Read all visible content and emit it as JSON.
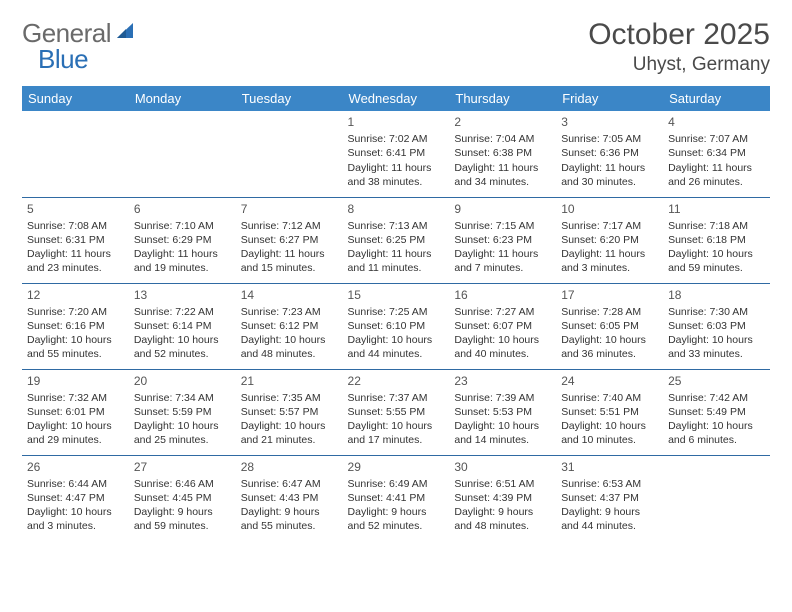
{
  "brand": {
    "part1": "General",
    "part2": "Blue"
  },
  "title": "October 2025",
  "location": "Uhyst, Germany",
  "colors": {
    "header_bg": "#3b86c7",
    "header_text": "#ffffff",
    "row_border": "#2f6aa3",
    "logo_gray": "#6a6a6a",
    "logo_blue": "#2a6fb5",
    "text": "#333333"
  },
  "weekdays": [
    "Sunday",
    "Monday",
    "Tuesday",
    "Wednesday",
    "Thursday",
    "Friday",
    "Saturday"
  ],
  "weeks": [
    [
      null,
      null,
      null,
      {
        "d": "1",
        "sr": "Sunrise: 7:02 AM",
        "ss": "Sunset: 6:41 PM",
        "dl": "Daylight: 11 hours and 38 minutes."
      },
      {
        "d": "2",
        "sr": "Sunrise: 7:04 AM",
        "ss": "Sunset: 6:38 PM",
        "dl": "Daylight: 11 hours and 34 minutes."
      },
      {
        "d": "3",
        "sr": "Sunrise: 7:05 AM",
        "ss": "Sunset: 6:36 PM",
        "dl": "Daylight: 11 hours and 30 minutes."
      },
      {
        "d": "4",
        "sr": "Sunrise: 7:07 AM",
        "ss": "Sunset: 6:34 PM",
        "dl": "Daylight: 11 hours and 26 minutes."
      }
    ],
    [
      {
        "d": "5",
        "sr": "Sunrise: 7:08 AM",
        "ss": "Sunset: 6:31 PM",
        "dl": "Daylight: 11 hours and 23 minutes."
      },
      {
        "d": "6",
        "sr": "Sunrise: 7:10 AM",
        "ss": "Sunset: 6:29 PM",
        "dl": "Daylight: 11 hours and 19 minutes."
      },
      {
        "d": "7",
        "sr": "Sunrise: 7:12 AM",
        "ss": "Sunset: 6:27 PM",
        "dl": "Daylight: 11 hours and 15 minutes."
      },
      {
        "d": "8",
        "sr": "Sunrise: 7:13 AM",
        "ss": "Sunset: 6:25 PM",
        "dl": "Daylight: 11 hours and 11 minutes."
      },
      {
        "d": "9",
        "sr": "Sunrise: 7:15 AM",
        "ss": "Sunset: 6:23 PM",
        "dl": "Daylight: 11 hours and 7 minutes."
      },
      {
        "d": "10",
        "sr": "Sunrise: 7:17 AM",
        "ss": "Sunset: 6:20 PM",
        "dl": "Daylight: 11 hours and 3 minutes."
      },
      {
        "d": "11",
        "sr": "Sunrise: 7:18 AM",
        "ss": "Sunset: 6:18 PM",
        "dl": "Daylight: 10 hours and 59 minutes."
      }
    ],
    [
      {
        "d": "12",
        "sr": "Sunrise: 7:20 AM",
        "ss": "Sunset: 6:16 PM",
        "dl": "Daylight: 10 hours and 55 minutes."
      },
      {
        "d": "13",
        "sr": "Sunrise: 7:22 AM",
        "ss": "Sunset: 6:14 PM",
        "dl": "Daylight: 10 hours and 52 minutes."
      },
      {
        "d": "14",
        "sr": "Sunrise: 7:23 AM",
        "ss": "Sunset: 6:12 PM",
        "dl": "Daylight: 10 hours and 48 minutes."
      },
      {
        "d": "15",
        "sr": "Sunrise: 7:25 AM",
        "ss": "Sunset: 6:10 PM",
        "dl": "Daylight: 10 hours and 44 minutes."
      },
      {
        "d": "16",
        "sr": "Sunrise: 7:27 AM",
        "ss": "Sunset: 6:07 PM",
        "dl": "Daylight: 10 hours and 40 minutes."
      },
      {
        "d": "17",
        "sr": "Sunrise: 7:28 AM",
        "ss": "Sunset: 6:05 PM",
        "dl": "Daylight: 10 hours and 36 minutes."
      },
      {
        "d": "18",
        "sr": "Sunrise: 7:30 AM",
        "ss": "Sunset: 6:03 PM",
        "dl": "Daylight: 10 hours and 33 minutes."
      }
    ],
    [
      {
        "d": "19",
        "sr": "Sunrise: 7:32 AM",
        "ss": "Sunset: 6:01 PM",
        "dl": "Daylight: 10 hours and 29 minutes."
      },
      {
        "d": "20",
        "sr": "Sunrise: 7:34 AM",
        "ss": "Sunset: 5:59 PM",
        "dl": "Daylight: 10 hours and 25 minutes."
      },
      {
        "d": "21",
        "sr": "Sunrise: 7:35 AM",
        "ss": "Sunset: 5:57 PM",
        "dl": "Daylight: 10 hours and 21 minutes."
      },
      {
        "d": "22",
        "sr": "Sunrise: 7:37 AM",
        "ss": "Sunset: 5:55 PM",
        "dl": "Daylight: 10 hours and 17 minutes."
      },
      {
        "d": "23",
        "sr": "Sunrise: 7:39 AM",
        "ss": "Sunset: 5:53 PM",
        "dl": "Daylight: 10 hours and 14 minutes."
      },
      {
        "d": "24",
        "sr": "Sunrise: 7:40 AM",
        "ss": "Sunset: 5:51 PM",
        "dl": "Daylight: 10 hours and 10 minutes."
      },
      {
        "d": "25",
        "sr": "Sunrise: 7:42 AM",
        "ss": "Sunset: 5:49 PM",
        "dl": "Daylight: 10 hours and 6 minutes."
      }
    ],
    [
      {
        "d": "26",
        "sr": "Sunrise: 6:44 AM",
        "ss": "Sunset: 4:47 PM",
        "dl": "Daylight: 10 hours and 3 minutes."
      },
      {
        "d": "27",
        "sr": "Sunrise: 6:46 AM",
        "ss": "Sunset: 4:45 PM",
        "dl": "Daylight: 9 hours and 59 minutes."
      },
      {
        "d": "28",
        "sr": "Sunrise: 6:47 AM",
        "ss": "Sunset: 4:43 PM",
        "dl": "Daylight: 9 hours and 55 minutes."
      },
      {
        "d": "29",
        "sr": "Sunrise: 6:49 AM",
        "ss": "Sunset: 4:41 PM",
        "dl": "Daylight: 9 hours and 52 minutes."
      },
      {
        "d": "30",
        "sr": "Sunrise: 6:51 AM",
        "ss": "Sunset: 4:39 PM",
        "dl": "Daylight: 9 hours and 48 minutes."
      },
      {
        "d": "31",
        "sr": "Sunrise: 6:53 AM",
        "ss": "Sunset: 4:37 PM",
        "dl": "Daylight: 9 hours and 44 minutes."
      },
      null
    ]
  ]
}
